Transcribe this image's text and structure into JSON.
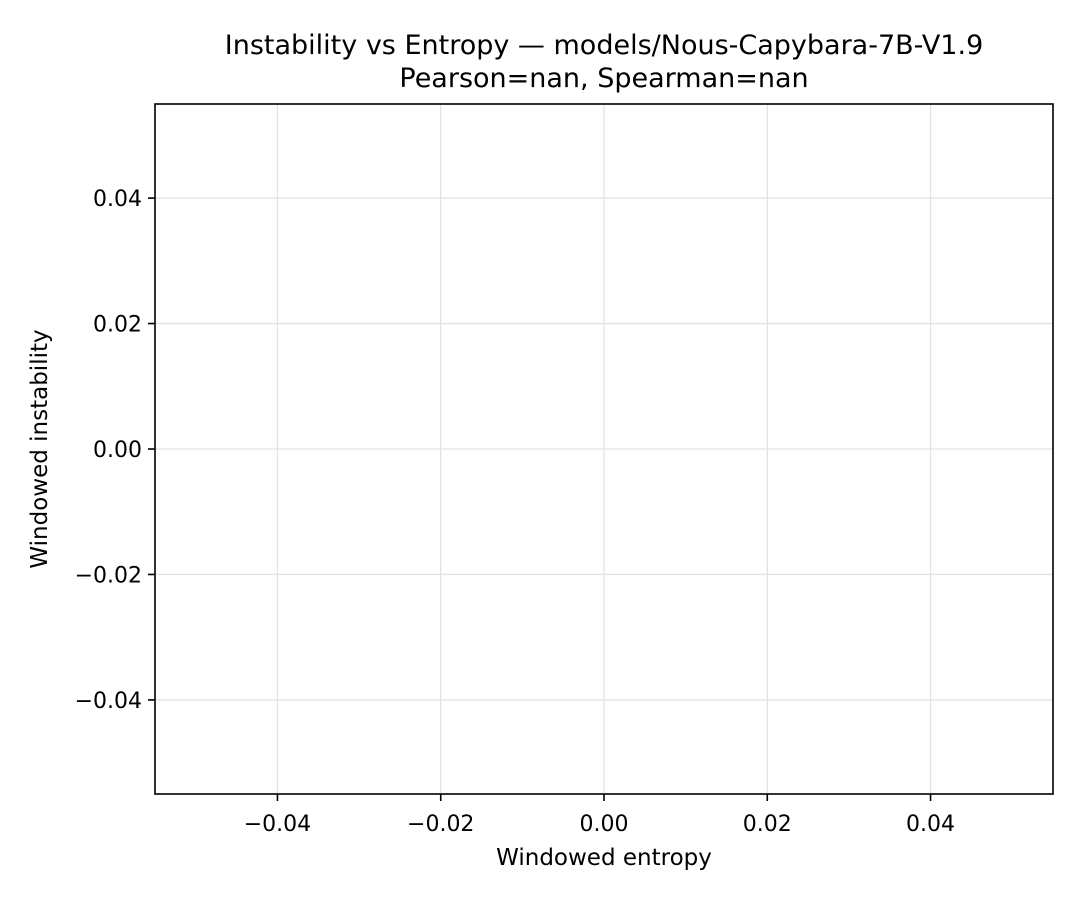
{
  "chart_data": {
    "type": "scatter",
    "title": "Instability vs Entropy — models/Nous-Capybara-7B-V1.9",
    "subtitle": "Pearson=nan, Spearman=nan",
    "xlabel": "Windowed entropy",
    "ylabel": "Windowed instability",
    "xlim": [
      -0.055,
      0.055
    ],
    "ylim": [
      -0.055,
      0.055
    ],
    "x_ticks": [
      -0.04,
      -0.02,
      0.0,
      0.02,
      0.04
    ],
    "y_ticks": [
      -0.04,
      -0.02,
      0.0,
      0.02,
      0.04
    ],
    "x_tick_labels": [
      "−0.04",
      "−0.02",
      "0.00",
      "0.02",
      "0.04"
    ],
    "y_tick_labels": [
      "−0.04",
      "−0.02",
      "0.00",
      "0.02",
      "0.04"
    ],
    "grid": true,
    "series": [
      {
        "x": [],
        "y": []
      }
    ],
    "colors": {
      "grid": "#e3e3e3",
      "axis": "#000000",
      "background": "#ffffff"
    }
  }
}
